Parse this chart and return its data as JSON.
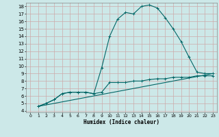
{
  "xlabel": "Humidex (Indice chaleur)",
  "bg_color": "#cce8e8",
  "grid_color": "#ccaaaa",
  "line_color": "#006666",
  "xlim": [
    -0.5,
    23.5
  ],
  "ylim": [
    3.8,
    18.5
  ],
  "xticks": [
    0,
    1,
    2,
    3,
    4,
    5,
    6,
    7,
    8,
    9,
    10,
    11,
    12,
    13,
    14,
    15,
    16,
    17,
    18,
    19,
    20,
    21,
    22,
    23
  ],
  "yticks": [
    4,
    5,
    6,
    7,
    8,
    9,
    10,
    11,
    12,
    13,
    14,
    15,
    16,
    17,
    18
  ],
  "curve1_x": [
    1,
    2,
    3,
    4,
    5,
    6,
    7,
    8,
    9,
    10,
    11,
    12,
    13,
    14,
    15,
    16,
    17,
    18,
    19,
    20,
    21,
    22,
    23
  ],
  "curve1_y": [
    4.6,
    5.0,
    5.5,
    6.3,
    6.5,
    6.5,
    6.5,
    6.3,
    9.8,
    14.0,
    16.3,
    17.2,
    17.0,
    18.0,
    18.2,
    17.8,
    16.5,
    15.0,
    13.3,
    11.2,
    9.2,
    9.0,
    9.0
  ],
  "curve2_x": [
    1,
    2,
    3,
    4,
    5,
    6,
    7,
    8,
    9,
    10,
    11,
    12,
    13,
    14,
    15,
    16,
    17,
    18,
    19,
    20,
    21,
    22,
    23
  ],
  "curve2_y": [
    4.6,
    5.0,
    5.5,
    6.3,
    6.5,
    6.5,
    6.5,
    6.3,
    6.5,
    7.8,
    7.8,
    7.8,
    8.0,
    8.0,
    8.2,
    8.3,
    8.3,
    8.5,
    8.5,
    8.5,
    8.7,
    8.7,
    8.7
  ],
  "line1_x": [
    1,
    23
  ],
  "line1_y": [
    4.6,
    9.0
  ]
}
